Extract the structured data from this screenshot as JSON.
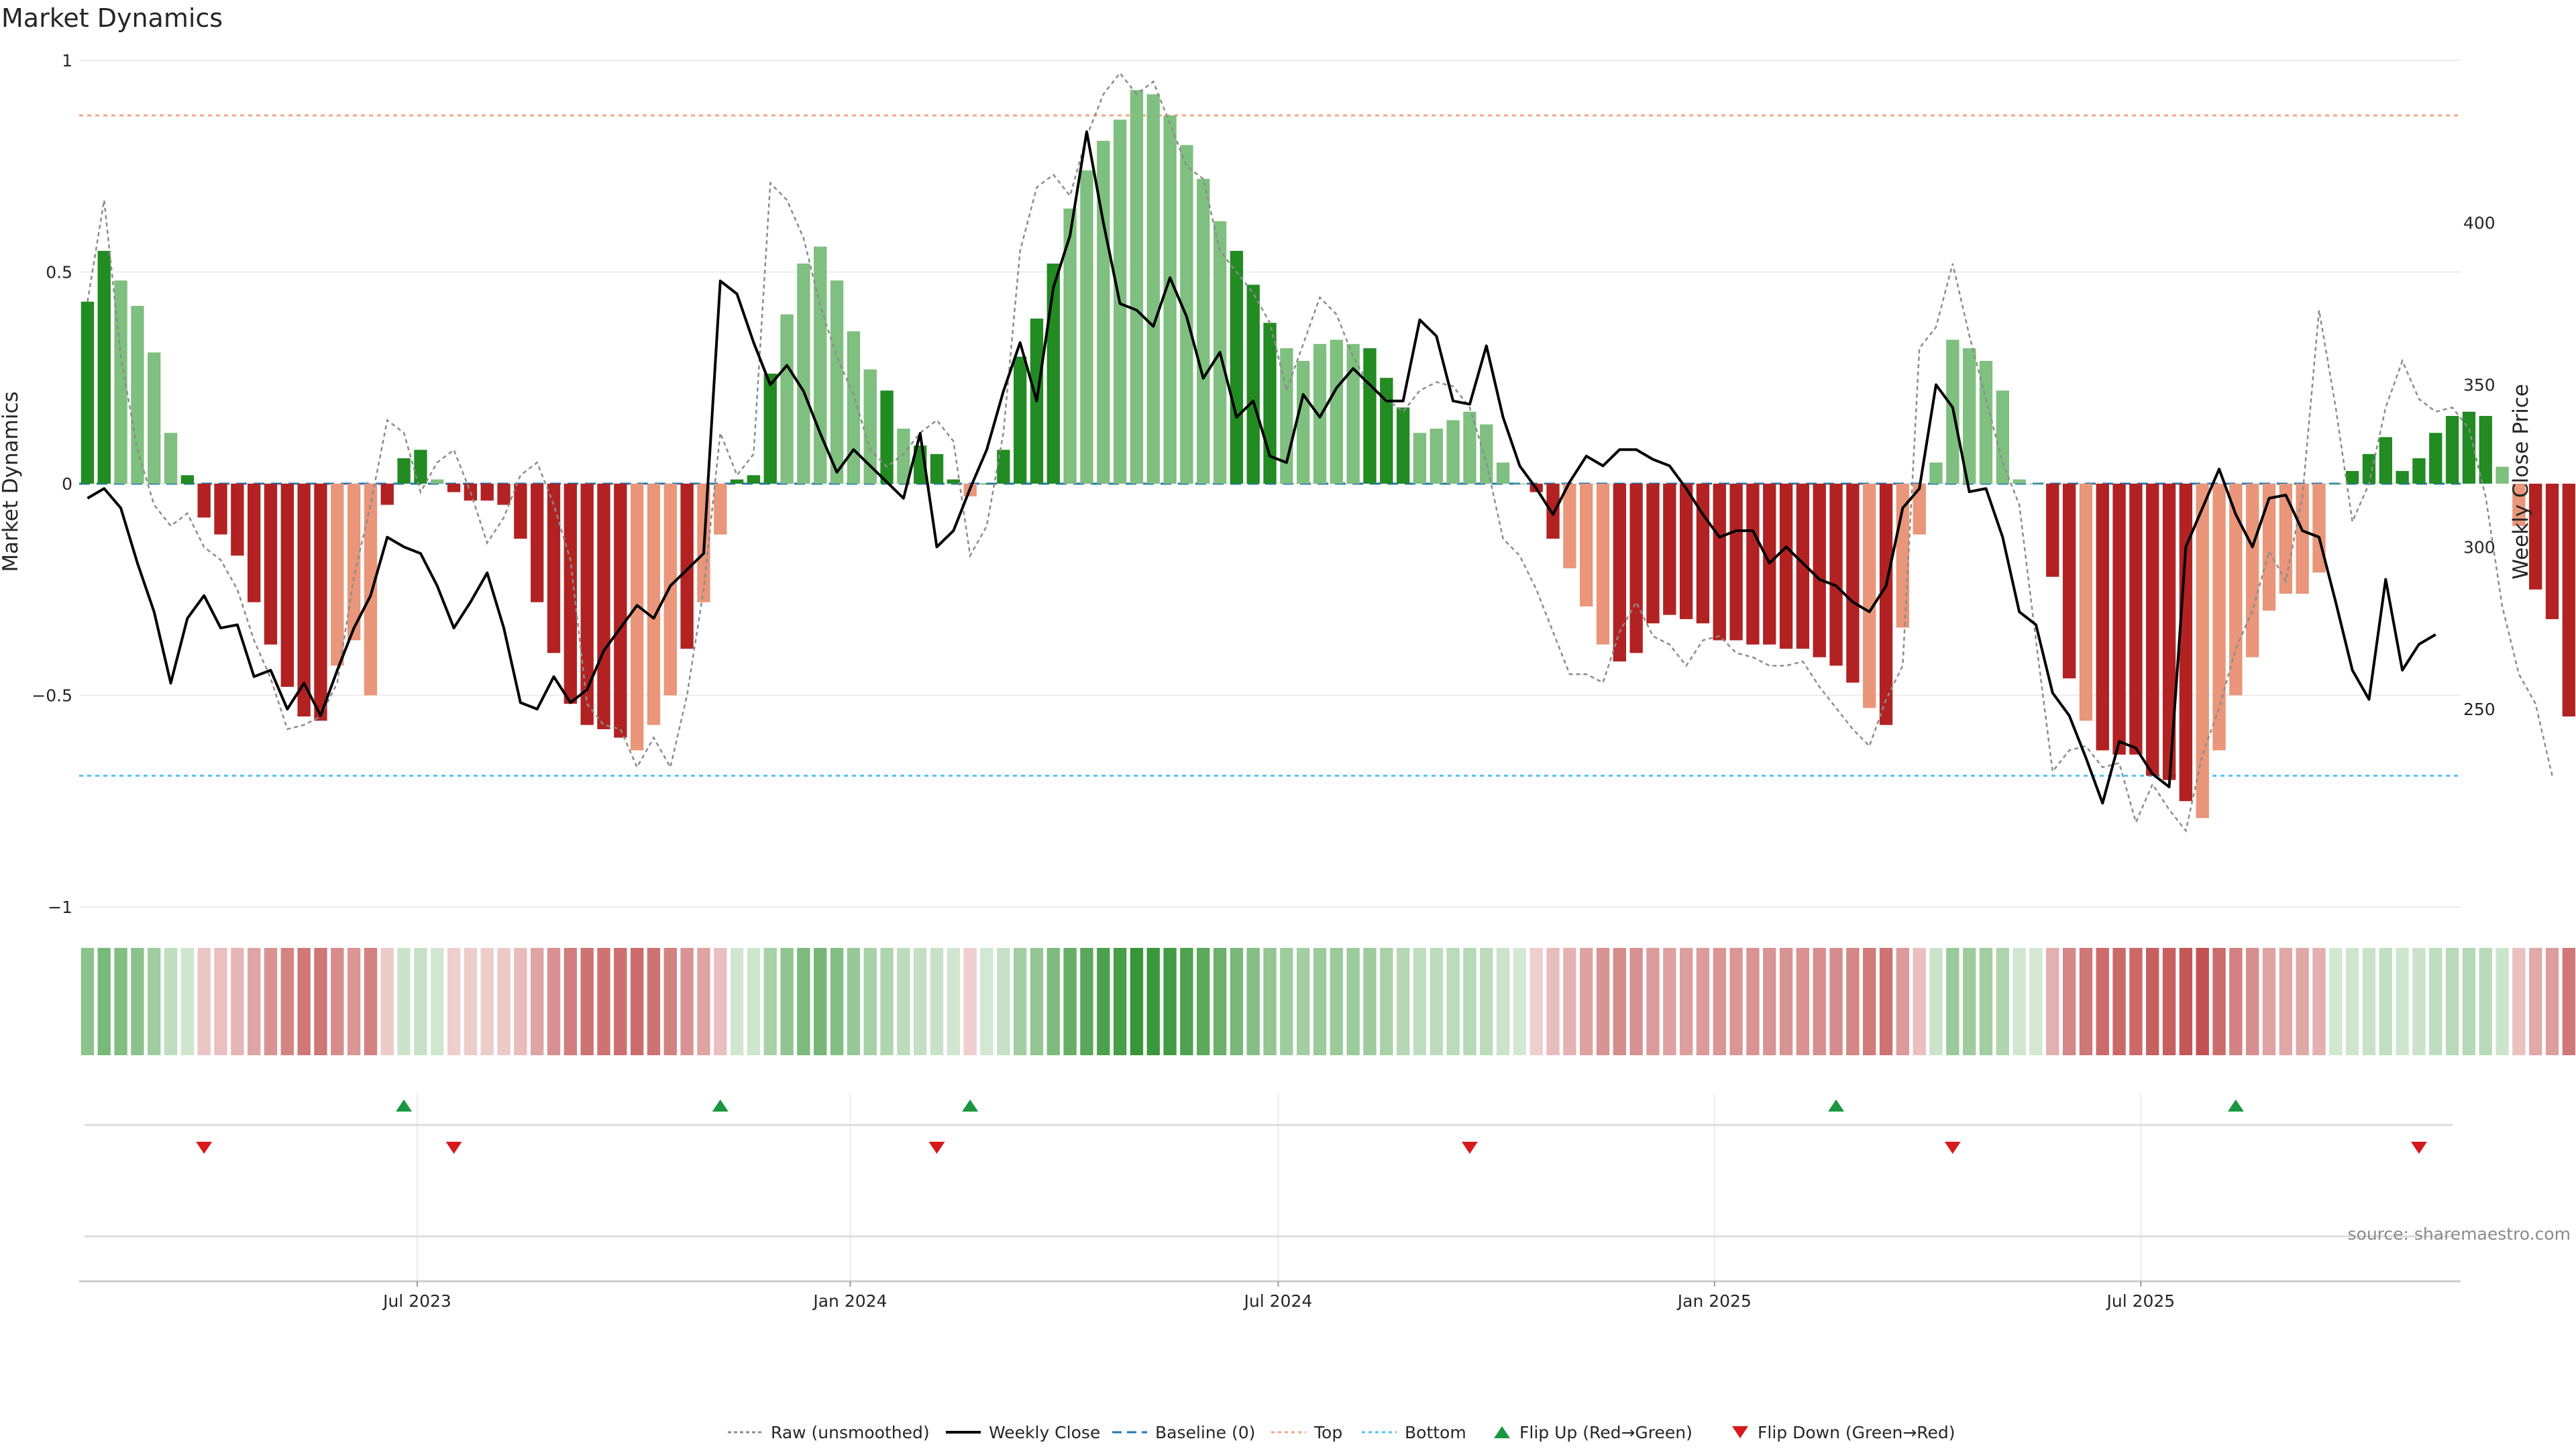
{
  "chart_data": {
    "type": "bar",
    "title": "Market Dynamics",
    "ylabel": "Market Dynamics",
    "y2label": "Weekly Close Price",
    "ylim": [
      -1,
      1
    ],
    "y2lim": [
      189,
      450
    ],
    "left_ticks": [
      "1",
      "0.5",
      "0",
      "−0.5",
      "−1"
    ],
    "left_tick_values": [
      1,
      0.5,
      0,
      -0.5,
      -1
    ],
    "right_ticks": [
      "400",
      "350",
      "300",
      "250"
    ],
    "right_tick_values": [
      400,
      350,
      300,
      250
    ],
    "x_ticks": [
      "Jul 2023",
      "Jan 2024",
      "Jul 2024",
      "Jan 2025",
      "Jul 2025"
    ],
    "x_tick_weeks": [
      20.3,
      46.3,
      72.0,
      98.2,
      123.8
    ],
    "top_threshold": 0.87,
    "bottom_threshold": -0.69,
    "source": "source: sharemaestro.com",
    "colors": {
      "strong_green": "#228b22",
      "light_green": "#7fbf7f",
      "strong_red": "#b22222",
      "light_red": "#e9967a",
      "top_line": "#f4a582",
      "bottom_line": "#4fc3f7",
      "baseline": "#1f77b4",
      "raw": "#8c8c8c",
      "price": "#000000",
      "flip_up": "#1a9641",
      "flip_down": "#d7191c"
    },
    "weeks": 143,
    "values": [
      0.43,
      0.55,
      0.48,
      0.42,
      0.31,
      0.12,
      0.02,
      -0.08,
      -0.12,
      -0.17,
      -0.28,
      -0.38,
      -0.48,
      -0.55,
      -0.56,
      -0.43,
      -0.37,
      -0.5,
      -0.05,
      0.06,
      0.08,
      0.01,
      -0.02,
      -0.04,
      -0.04,
      -0.05,
      -0.13,
      -0.28,
      -0.4,
      -0.52,
      -0.57,
      -0.58,
      -0.6,
      -0.63,
      -0.57,
      -0.5,
      -0.39,
      -0.28,
      -0.12,
      0.01,
      0.02,
      0.26,
      0.4,
      0.52,
      0.56,
      0.48,
      0.36,
      0.27,
      0.22,
      0.13,
      0.09,
      0.07,
      0.01,
      -0.03,
      0.0,
      0.08,
      0.3,
      0.39,
      0.52,
      0.65,
      0.74,
      0.81,
      0.86,
      0.93,
      0.92,
      0.87,
      0.8,
      0.72,
      0.62,
      0.55,
      0.47,
      0.38,
      0.32,
      0.29,
      0.33,
      0.34,
      0.33,
      0.32,
      0.25,
      0.18,
      0.12,
      0.13,
      0.15,
      0.17,
      0.14,
      0.05,
      0.0,
      -0.02,
      -0.13,
      -0.2,
      -0.29,
      -0.38,
      -0.42,
      -0.4,
      -0.33,
      -0.31,
      -0.32,
      -0.33,
      -0.37,
      -0.37,
      -0.38,
      -0.38,
      -0.39,
      -0.39,
      -0.41,
      -0.43,
      -0.47,
      -0.53,
      -0.57,
      -0.34,
      -0.12,
      0.05,
      0.34,
      0.32,
      0.29,
      0.22,
      0.01,
      0.0,
      -0.22,
      -0.46,
      -0.56,
      -0.63,
      -0.64,
      -0.64,
      -0.69,
      -0.7,
      -0.75,
      -0.79,
      -0.63,
      -0.5,
      -0.41,
      -0.3,
      -0.26,
      -0.26,
      -0.21,
      0.0,
      0.03,
      0.07,
      0.11,
      0.03,
      0.06,
      0.12,
      0.16,
      0.17,
      0.16,
      0.04,
      -0.1,
      -0.25,
      -0.32,
      -0.55
    ],
    "colors_seq": "GGLLLLGRRRRRRRRLLLRGGLRRRRRRRRRRRLLLRGGGGGLLLLLLGRGGGGGGGGGLLLLLLLLLLGGGLLLLLGGGLRRRRRRRRLLLRRRRRRRRRRRRRRRLRGGLLLLRRRRRLRRRRRRLLLLLLLLLGGGGGGGGGLLRRRR",
    "raw": [
      0.43,
      0.67,
      0.3,
      0.08,
      -0.05,
      -0.1,
      -0.07,
      -0.15,
      -0.18,
      -0.25,
      -0.37,
      -0.46,
      -0.58,
      -0.57,
      -0.55,
      -0.47,
      -0.22,
      -0.05,
      0.15,
      0.12,
      -0.02,
      0.05,
      0.08,
      -0.02,
      -0.14,
      -0.08,
      0.02,
      0.05,
      -0.05,
      -0.18,
      -0.52,
      -0.57,
      -0.58,
      -0.67,
      -0.6,
      -0.67,
      -0.5,
      -0.25,
      0.12,
      0.02,
      0.07,
      0.71,
      0.67,
      0.58,
      0.42,
      0.3,
      0.21,
      0.08,
      0.04,
      0.07,
      0.12,
      0.15,
      0.1,
      -0.17,
      -0.1,
      0.12,
      0.55,
      0.7,
      0.73,
      0.68,
      0.82,
      0.92,
      0.97,
      0.92,
      0.95,
      0.85,
      0.75,
      0.72,
      0.55,
      0.5,
      0.45,
      0.38,
      0.22,
      0.33,
      0.44,
      0.4,
      0.3,
      0.23,
      0.2,
      0.17,
      0.22,
      0.24,
      0.23,
      0.18,
      0.05,
      -0.13,
      -0.17,
      -0.25,
      -0.35,
      -0.45,
      -0.45,
      -0.47,
      -0.35,
      -0.28,
      -0.36,
      -0.38,
      -0.43,
      -0.37,
      -0.36,
      -0.4,
      -0.41,
      -0.43,
      -0.43,
      -0.42,
      -0.48,
      -0.53,
      -0.58,
      -0.62,
      -0.51,
      -0.43,
      0.32,
      0.37,
      0.52,
      0.35,
      0.2,
      0.05,
      -0.05,
      -0.37,
      -0.68,
      -0.63,
      -0.62,
      -0.67,
      -0.66,
      -0.8,
      -0.71,
      -0.77,
      -0.82,
      -0.64,
      -0.53,
      -0.39,
      -0.3,
      -0.16,
      -0.23,
      -0.03,
      0.41,
      0.18,
      -0.09,
      0.0,
      0.18,
      0.29,
      0.2,
      0.17,
      0.18,
      0.13,
      -0.03,
      -0.29,
      -0.45,
      -0.52,
      -0.69
    ],
    "price": [
      315,
      318,
      312,
      295,
      280,
      258,
      278,
      285,
      275,
      276,
      260,
      262,
      250,
      258,
      248,
      262,
      275,
      285,
      303,
      300,
      298,
      288,
      275,
      283,
      292,
      275,
      252,
      250,
      260,
      252,
      256,
      268,
      275,
      282,
      278,
      288,
      293,
      298,
      382,
      378,
      363,
      350,
      356,
      348,
      335,
      323,
      330,
      325,
      320,
      315,
      335,
      300,
      305,
      318,
      330,
      348,
      363,
      345,
      380,
      396,
      428,
      400,
      375,
      373,
      368,
      383,
      371,
      352,
      360,
      340,
      345,
      328,
      326,
      347,
      340,
      349,
      355,
      350,
      345,
      345,
      370,
      365,
      345,
      344,
      362,
      340,
      325,
      318,
      310,
      320,
      328,
      325,
      330,
      330,
      327,
      325,
      318,
      310,
      303,
      305,
      305,
      295,
      300,
      295,
      290,
      288,
      283,
      280,
      288,
      312,
      318,
      350,
      343,
      317,
      318,
      303,
      280,
      276,
      255,
      248,
      235,
      221,
      240,
      238,
      230,
      226,
      300,
      312,
      324,
      310,
      300,
      315,
      316,
      305,
      303,
      283,
      262,
      253,
      290,
      262,
      270,
      273
    ],
    "flip_up_weeks": [
      19,
      38,
      53,
      105,
      129
    ],
    "flip_down_weeks": [
      7,
      22,
      51,
      83,
      112,
      140
    ],
    "legend": [
      {
        "label": "Raw (unsmoothed)",
        "kind": "raw"
      },
      {
        "label": "Weekly Close",
        "kind": "price"
      },
      {
        "label": "Baseline (0)",
        "kind": "baseline"
      },
      {
        "label": "Top",
        "kind": "top"
      },
      {
        "label": "Bottom",
        "kind": "bottom"
      },
      {
        "label": "Flip Up (Red→Green)",
        "kind": "up"
      },
      {
        "label": "Flip Down (Green→Red)",
        "kind": "down"
      }
    ]
  }
}
